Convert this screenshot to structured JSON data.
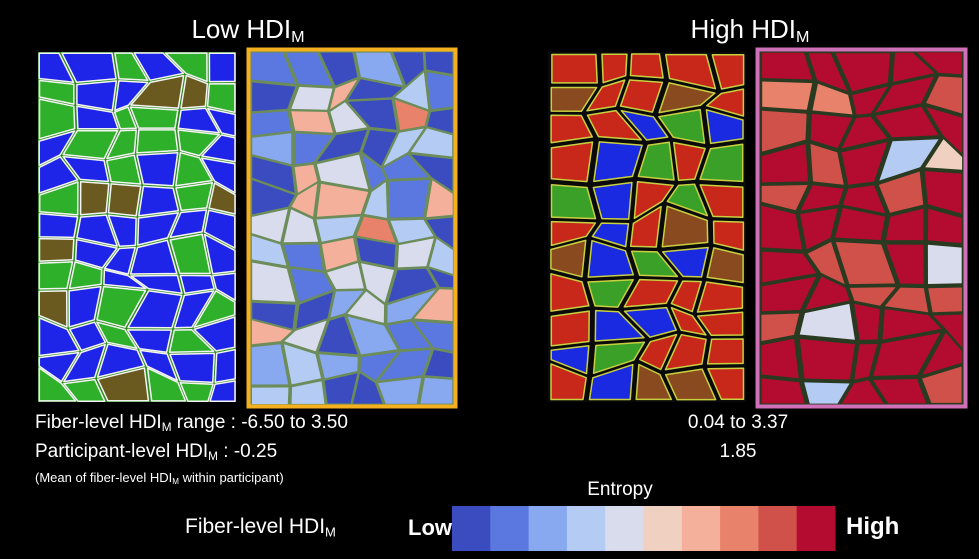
{
  "panels": [
    {
      "title": "Low HDI",
      "title_sub": "M",
      "fiber_range": "-6.50 to 3.50",
      "participant": "-0.25"
    },
    {
      "title": "High HDI",
      "title_sub": "M",
      "fiber_range": "0.04 to 3.37",
      "participant": "1.85"
    }
  ],
  "row_labels": {
    "fiber": {
      "text": "Fiber-level HDI",
      "sub": "M",
      "suffix": " range : "
    },
    "participant": {
      "text": "Participant-level HDI",
      "sub": "M",
      "suffix": " : "
    },
    "note": {
      "text": "(Mean of fiber-level HDI",
      "sub": "M",
      "suffix": " within participant)"
    }
  },
  "legend": {
    "title": "Entropy",
    "label": "Fiber-level HDI",
    "label_sub": "M",
    "low": "Low",
    "high": "High",
    "colors": [
      "#3b4cc0",
      "#5a78e0",
      "#88a8f0",
      "#b4ccf4",
      "#d8dcec",
      "#f0d0c0",
      "#f4b09a",
      "#e8826a",
      "#d0504a",
      "#b40b30"
    ]
  }
}
